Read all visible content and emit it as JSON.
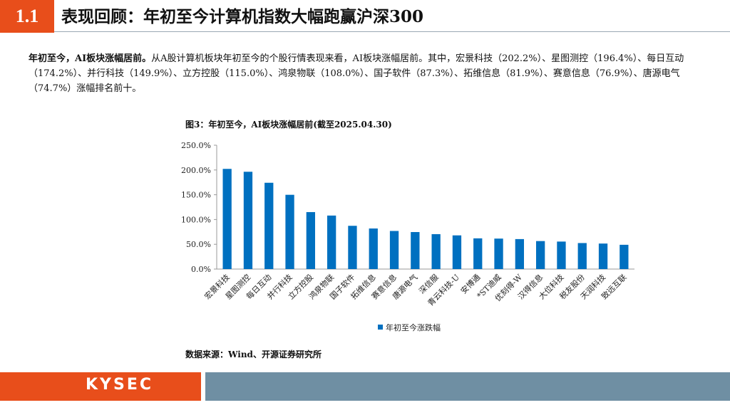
{
  "header": {
    "section_number": "1.1",
    "title": "表现回顾：年初至今计算机指数大幅跑赢沪深300"
  },
  "summary": {
    "lead": "年初至今，AI板块涨幅居前。",
    "body": "从A股计算机板块年初至今的个股行情表现来看，AI板块涨幅居前。其中，宏景科技（202.2%）、星图测控（196.4%）、每日互动（174.2%）、并行科技（149.9%）、立方控股（115.0%）、鸿泉物联（108.0%）、国子软件（87.3%）、拓维信息（81.9%）、赛意信息（76.9%）、唐源电气（74.7%）涨幅排名前十。"
  },
  "figure": {
    "caption": "图3：年初至今，AI板块涨幅居前(截至2025.04.30)"
  },
  "chart_data": {
    "type": "bar",
    "title": "年初至今，AI板块涨幅居前(截至2025.04.30)",
    "categories": [
      "宏景科技",
      "星图测控",
      "每日互动",
      "并行科技",
      "立方控股",
      "鸿泉物联",
      "国子软件",
      "拓维信息",
      "赛意信息",
      "唐源电气",
      "深信服",
      "青云科技-U",
      "安博通",
      "*ST迪威",
      "优刻得-W",
      "汉得信息",
      "大位科技",
      "税友股份",
      "天润科技",
      "致远互联"
    ],
    "series": [
      {
        "name": "年初至今涨跌幅",
        "color": "#0070c0",
        "values": [
          202.2,
          196.4,
          174.2,
          149.9,
          115.0,
          108.0,
          87.3,
          81.9,
          76.9,
          74.7,
          70.5,
          68.0,
          62.0,
          61.5,
          60.5,
          56.5,
          55.5,
          52.5,
          51.5,
          49.0
        ]
      }
    ],
    "ylim": [
      0,
      250
    ],
    "yticks": [
      0,
      50,
      100,
      150,
      200,
      250
    ],
    "ytick_labels": [
      "0.0%",
      "50.0%",
      "100.0%",
      "150.0%",
      "200.0%",
      "250.0%"
    ],
    "xlabel": "",
    "ylabel": "",
    "grid": false,
    "legend": "bottom"
  },
  "source": "数据来源：Wind、开源证券研究所",
  "footer": {
    "logo": "KYSEC",
    "brand_color": "#e84e1b",
    "band_color": "#6f8fa3"
  }
}
